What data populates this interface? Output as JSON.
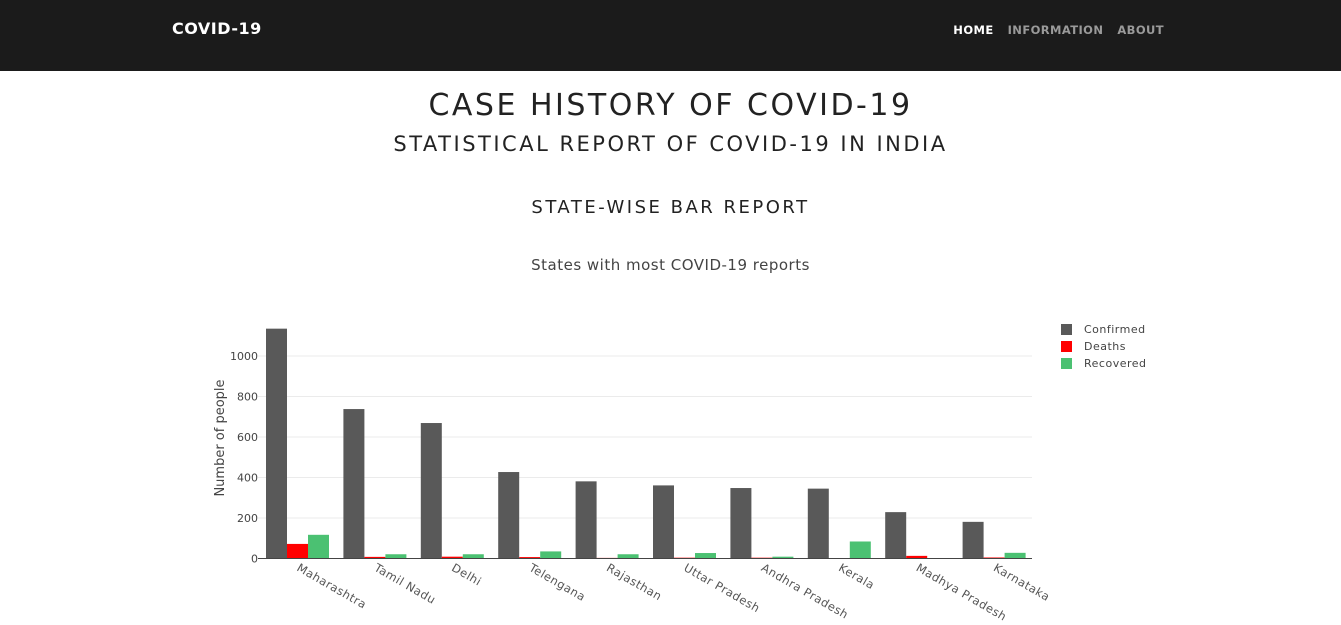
{
  "navbar": {
    "brand": "COVID-19",
    "links": [
      {
        "label": "HOME",
        "active": true
      },
      {
        "label": "INFORMATION",
        "active": false
      },
      {
        "label": "ABOUT",
        "active": false
      }
    ]
  },
  "header": {
    "title": "CASE HISTORY OF COVID-19",
    "subtitle": "STATISTICAL REPORT OF COVID-19 IN INDIA",
    "section": "STATE-WISE BAR REPORT"
  },
  "chart_data": {
    "type": "bar",
    "title": "States with most COVID-19 reports",
    "xlabel": "",
    "ylabel": "Number of people",
    "ylim": [
      0,
      1200
    ],
    "yticks": [
      0,
      200,
      400,
      600,
      800,
      1000
    ],
    "grid": true,
    "legend_position": "top-right",
    "categories": [
      "Maharashtra",
      "Tamil Nadu",
      "Delhi",
      "Telengana",
      "Rajasthan",
      "Uttar Pradesh",
      "Andhra Pradesh",
      "Kerala",
      "Madhya Pradesh",
      "Karnataka"
    ],
    "series": [
      {
        "name": "Confirmed",
        "color": "#595959",
        "values": [
          1135,
          738,
          669,
          427,
          381,
          361,
          348,
          345,
          229,
          181
        ]
      },
      {
        "name": "Deaths",
        "color": "#ff0000",
        "values": [
          72,
          8,
          9,
          7,
          3,
          4,
          4,
          2,
          13,
          5
        ]
      },
      {
        "name": "Recovered",
        "color": "#4bc172",
        "values": [
          117,
          21,
          21,
          35,
          21,
          27,
          9,
          84,
          0,
          28
        ]
      }
    ]
  }
}
